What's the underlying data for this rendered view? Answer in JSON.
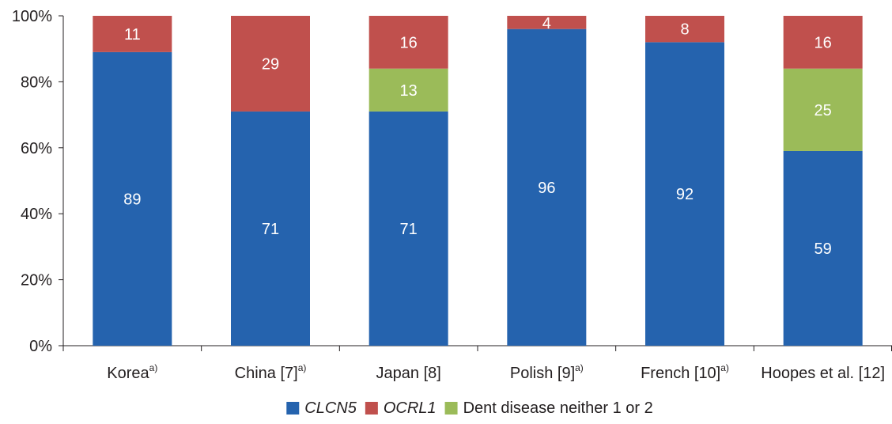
{
  "chart_data": {
    "type": "bar",
    "stacked": true,
    "normalized": true,
    "categories": [
      {
        "name": "Korea",
        "sup": "a)"
      },
      {
        "name": "China [7]",
        "sup": "a)"
      },
      {
        "name": "Japan [8]",
        "sup": ""
      },
      {
        "name": "Polish [9]",
        "sup": "a)"
      },
      {
        "name": "French [10]",
        "sup": "a)"
      },
      {
        "name": "Hoopes et al. [12]",
        "sup": ""
      }
    ],
    "series": [
      {
        "name": "CLCN5",
        "italic": true,
        "color": "#2563ae",
        "values": [
          89,
          71,
          71,
          96,
          92,
          59
        ],
        "labels": [
          "89",
          "71",
          "71",
          "96",
          "92",
          "59"
        ]
      },
      {
        "name": "OCRL1",
        "italic": true,
        "color": "#c0504d",
        "values": [
          11,
          29,
          16,
          4,
          8,
          16
        ],
        "labels": [
          "11",
          "29",
          "16",
          "4",
          "8",
          "16"
        ]
      },
      {
        "name": "Dent disease neither 1 or 2",
        "italic": false,
        "color": "#9bbb59",
        "values": [
          0,
          0,
          13,
          0,
          0,
          25
        ],
        "labels": [
          "",
          "",
          "13",
          "",
          "",
          "25"
        ]
      }
    ],
    "stack_order": [
      "CLCN5",
      "Dent disease neither 1 or 2",
      "OCRL1"
    ],
    "y_ticks": [
      "0%",
      "20%",
      "40%",
      "60%",
      "80%",
      "100%"
    ],
    "ylim": [
      0,
      100
    ],
    "grid": false,
    "legend_position": "bottom-center",
    "title": "",
    "xlabel": "",
    "ylabel": ""
  }
}
